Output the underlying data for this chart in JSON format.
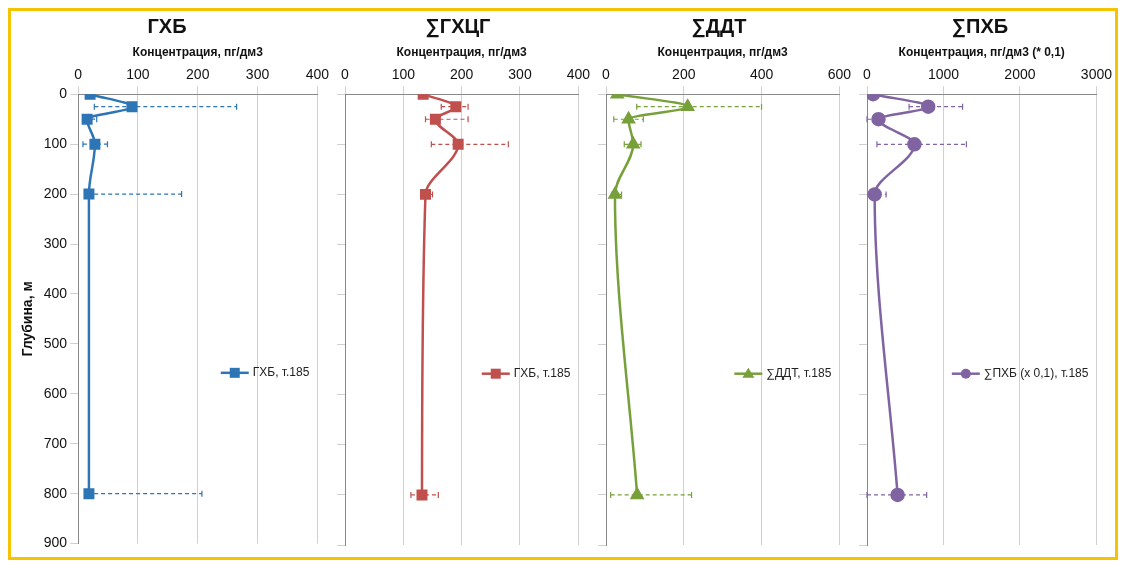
{
  "chart_data": [
    {
      "type": "line",
      "title": "ГХБ",
      "xlabel": "Концентрация, пг/дм3",
      "ylabel": "Глубина, м",
      "xlim": [
        0,
        400
      ],
      "xticks": [
        0,
        100,
        200,
        300,
        400
      ],
      "ylim": [
        900,
        0
      ],
      "yticks": [
        0,
        100,
        200,
        300,
        400,
        500,
        600,
        700,
        800,
        900
      ],
      "grid": "x",
      "legend": "right",
      "marker": "square",
      "series": [
        {
          "name": "ГХБ, т.185",
          "color": "#2e75b6",
          "x": [
            20,
            90,
            15,
            28,
            18,
            18
          ],
          "values": [
            0,
            25,
            50,
            100,
            200,
            800
          ],
          "xerrors": [
            null,
            [
              27,
              265
            ],
            [
              10,
              31
            ],
            [
              8,
              49
            ],
            [
              15,
              173
            ],
            [
              15,
              207
            ]
          ]
        }
      ]
    },
    {
      "type": "line",
      "title": "∑ГХЦГ",
      "xlabel": "Концентрация, пг/дм3",
      "xlim": [
        0,
        400
      ],
      "xticks": [
        0,
        100,
        200,
        300,
        400
      ],
      "ylim": [
        900,
        0
      ],
      "yticks": [
        0,
        100,
        200,
        300,
        400,
        500,
        600,
        700,
        800,
        900
      ],
      "grid": "x",
      "legend": "right",
      "marker": "square",
      "tick_labels": "x",
      "series": [
        {
          "name": "ГХБ, т.185",
          "color": "#c0504d",
          "x": [
            134,
            190,
            155,
            194,
            138,
            132
          ],
          "values": [
            0,
            25,
            50,
            100,
            200,
            800
          ],
          "xerrors": [
            null,
            [
              165,
              211
            ],
            [
              138,
              211
            ],
            [
              148,
              280
            ],
            [
              130,
              150
            ],
            [
              113,
              160
            ]
          ]
        }
      ]
    },
    {
      "type": "line",
      "title": "∑ДДТ",
      "xlabel": "Концентрация, пг/дм3",
      "xlim": [
        0,
        600
      ],
      "xticks": [
        0,
        200,
        400,
        600
      ],
      "ylim": [
        900,
        0
      ],
      "yticks": [
        0,
        100,
        200,
        300,
        400,
        500,
        600,
        700,
        800,
        900
      ],
      "grid": "x",
      "legend": "right",
      "marker": "triangle",
      "tick_labels": "x",
      "series": [
        {
          "name": "∑ДДТ, т.185",
          "color": "#77a03a",
          "x": [
            29,
            210,
            58,
            70,
            23,
            80
          ],
          "values": [
            0,
            25,
            50,
            100,
            200,
            800
          ],
          "xerrors": [
            null,
            [
              79,
              400
            ],
            [
              20,
              96
            ],
            [
              47,
              90
            ],
            [
              15,
              40
            ],
            [
              12,
              220
            ]
          ]
        }
      ]
    },
    {
      "type": "line",
      "title": "∑ПХБ",
      "xlabel": "Концентрация, пг/дм3 (* 0,1)",
      "xlim": [
        0,
        3000
      ],
      "xticks": [
        0,
        1000,
        2000,
        3000
      ],
      "ylim": [
        900,
        0
      ],
      "yticks": [
        0,
        100,
        200,
        300,
        400,
        500,
        600,
        700,
        800,
        900
      ],
      "grid": "x",
      "legend": "right",
      "marker": "circle",
      "tick_labels": "x",
      "series": [
        {
          "name": "∑ПХБ (x 0,1), т.185",
          "color": "#8064a2",
          "x": [
            80,
            800,
            150,
            620,
            100,
            400
          ],
          "values": [
            0,
            25,
            50,
            100,
            200,
            800
          ],
          "xerrors": [
            null,
            [
              550,
              1250
            ],
            [
              0,
              220
            ],
            [
              130,
              1300
            ],
            [
              50,
              250
            ],
            [
              0,
              780
            ]
          ]
        }
      ]
    }
  ]
}
